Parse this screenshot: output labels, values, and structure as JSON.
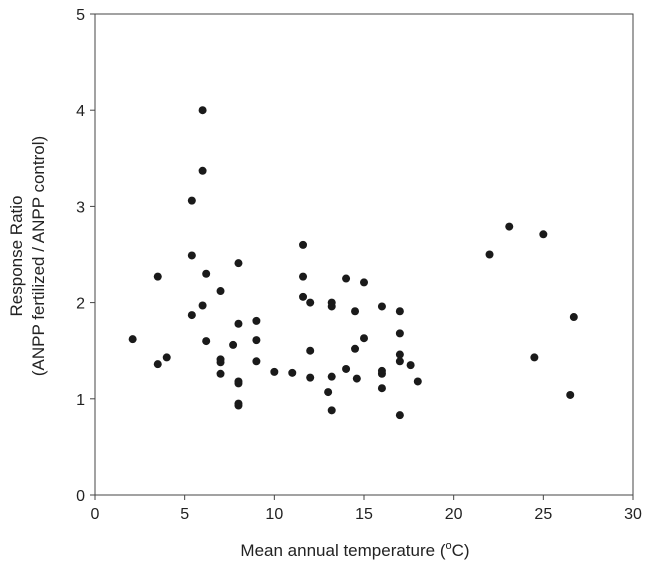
{
  "chart_data": {
    "type": "scatter",
    "title": "",
    "xlabel": "Mean annual temperature (oC)",
    "xlabel_prefix": "Mean annual temperature (",
    "xlabel_sup": "o",
    "xlabel_suffix": "C)",
    "ylabel_line1": "Response Ratio",
    "ylabel_line2": "(ANPP fertilized / ANPP control)",
    "xlim": [
      0,
      30
    ],
    "ylim": [
      0,
      5
    ],
    "xticks": [
      "0",
      "5",
      "10",
      "15",
      "20",
      "25",
      "30"
    ],
    "yticks": [
      "0",
      "1",
      "2",
      "3",
      "4",
      "5"
    ],
    "grid": false,
    "marker_color": "#1a1a1a",
    "points": [
      [
        2.1,
        1.62
      ],
      [
        3.5,
        2.27
      ],
      [
        3.5,
        1.36
      ],
      [
        4.0,
        1.43
      ],
      [
        5.4,
        3.06
      ],
      [
        5.4,
        2.49
      ],
      [
        5.4,
        1.87
      ],
      [
        6.0,
        4.0
      ],
      [
        6.0,
        3.37
      ],
      [
        6.2,
        2.3
      ],
      [
        6.0,
        1.97
      ],
      [
        6.2,
        1.6
      ],
      [
        7.0,
        2.12
      ],
      [
        7.0,
        1.41
      ],
      [
        7.0,
        1.38
      ],
      [
        7.0,
        1.26
      ],
      [
        7.7,
        1.56
      ],
      [
        8.0,
        2.41
      ],
      [
        8.0,
        1.78
      ],
      [
        8.0,
        1.18
      ],
      [
        8.0,
        1.16
      ],
      [
        8.0,
        0.95
      ],
      [
        8.0,
        0.93
      ],
      [
        9.0,
        1.81
      ],
      [
        9.0,
        1.61
      ],
      [
        9.0,
        1.39
      ],
      [
        10.0,
        1.28
      ],
      [
        11.0,
        1.27
      ],
      [
        11.6,
        2.6
      ],
      [
        11.6,
        2.27
      ],
      [
        11.6,
        2.06
      ],
      [
        12.0,
        2.0
      ],
      [
        12.0,
        1.5
      ],
      [
        12.0,
        1.22
      ],
      [
        13.0,
        1.07
      ],
      [
        13.2,
        2.0
      ],
      [
        13.2,
        1.96
      ],
      [
        13.2,
        1.23
      ],
      [
        13.2,
        0.88
      ],
      [
        14.0,
        2.25
      ],
      [
        14.0,
        1.31
      ],
      [
        14.5,
        1.91
      ],
      [
        14.5,
        1.52
      ],
      [
        14.6,
        1.21
      ],
      [
        15.0,
        2.21
      ],
      [
        15.0,
        1.63
      ],
      [
        16.0,
        1.96
      ],
      [
        16.0,
        1.29
      ],
      [
        16.0,
        1.26
      ],
      [
        16.0,
        1.11
      ],
      [
        17.0,
        1.91
      ],
      [
        17.0,
        1.68
      ],
      [
        17.0,
        1.46
      ],
      [
        17.0,
        1.39
      ],
      [
        17.0,
        0.83
      ],
      [
        17.6,
        1.35
      ],
      [
        18.0,
        1.18
      ],
      [
        22.0,
        2.5
      ],
      [
        23.1,
        2.79
      ],
      [
        24.5,
        1.43
      ],
      [
        25.0,
        2.71
      ],
      [
        26.5,
        1.04
      ],
      [
        26.7,
        1.85
      ]
    ]
  }
}
